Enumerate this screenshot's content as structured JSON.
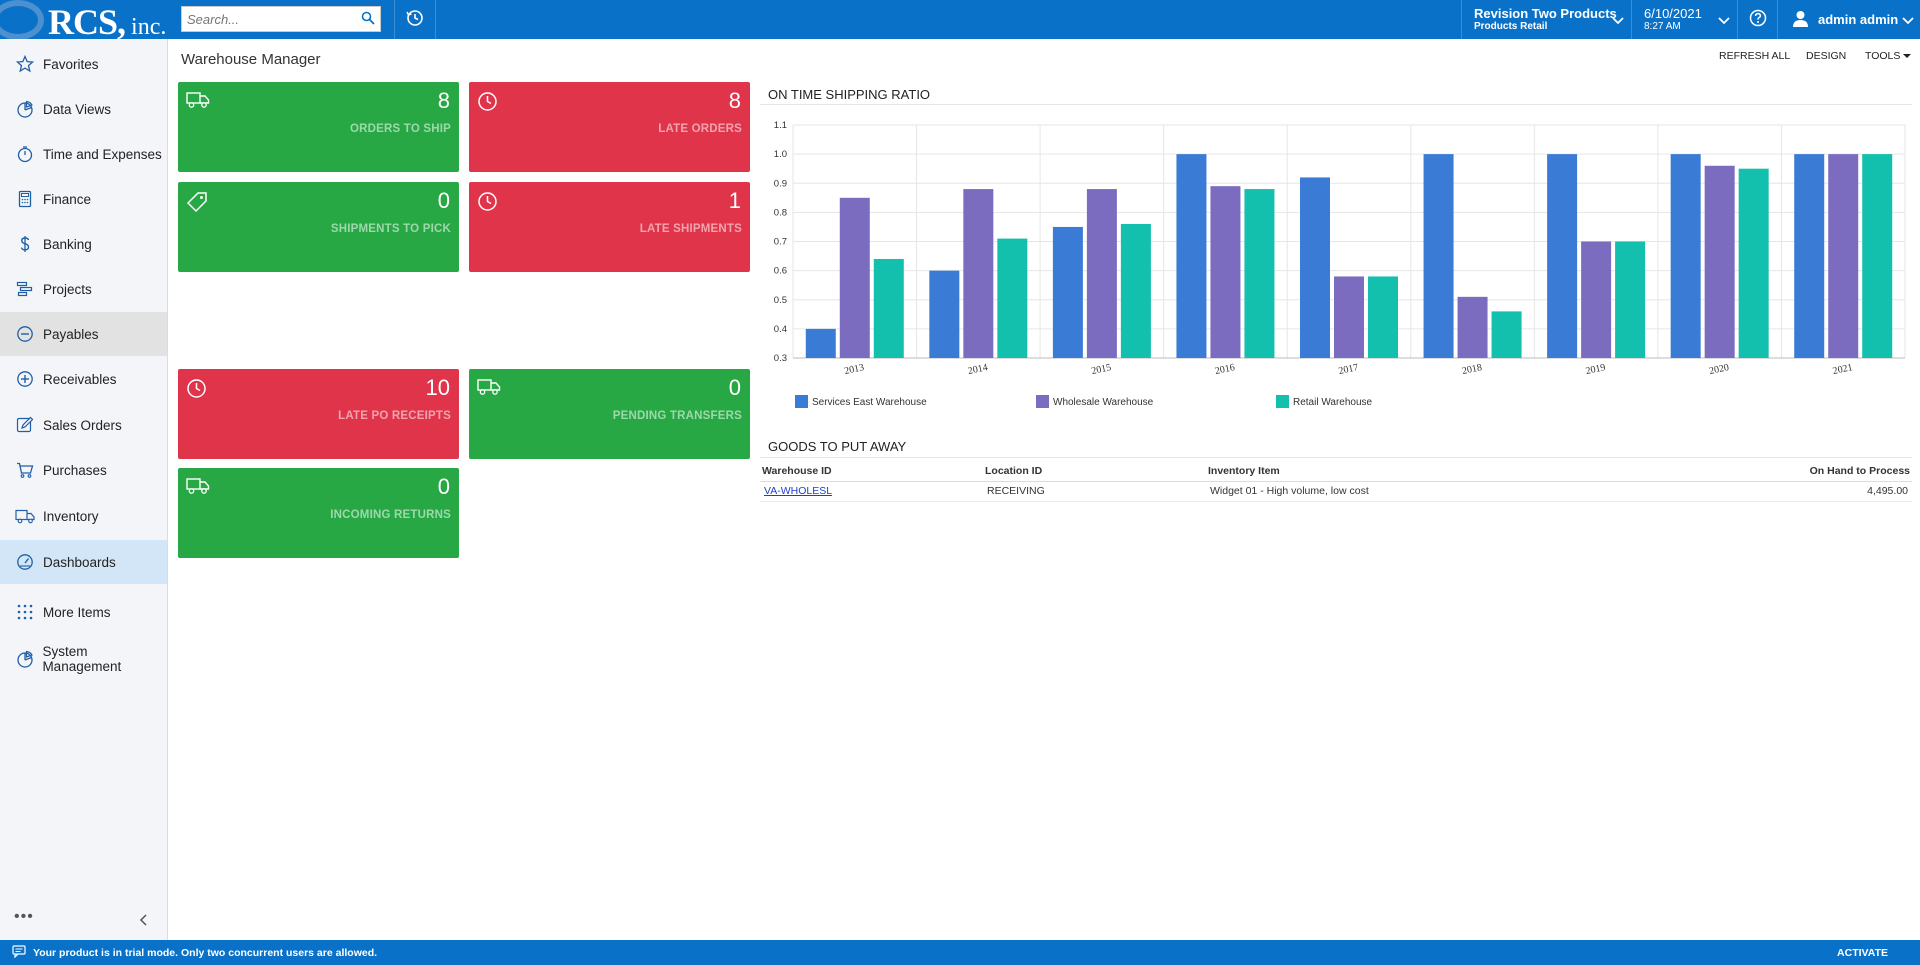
{
  "header": {
    "logo_main": "RCS,",
    "logo_suffix": " inc.",
    "search_placeholder": "Search...",
    "tenant_name": "Revision Two Products",
    "tenant_branch": "Products Retail",
    "date": "6/10/2021",
    "time": "8:27 AM",
    "user_name": "admin admin"
  },
  "sidebar": {
    "items": [
      {
        "label": "Favorites",
        "icon": "star-icon"
      },
      {
        "label": "Data Views",
        "icon": "pie-chart-icon"
      },
      {
        "label": "Time and Expenses",
        "icon": "stopwatch-icon"
      },
      {
        "label": "Finance",
        "icon": "calculator-icon"
      },
      {
        "label": "Banking",
        "icon": "dollar-icon"
      },
      {
        "label": "Projects",
        "icon": "gantt-icon"
      },
      {
        "label": "Payables",
        "icon": "minus-circle-icon"
      },
      {
        "label": "Receivables",
        "icon": "plus-circle-icon"
      },
      {
        "label": "Sales Orders",
        "icon": "edit-icon"
      },
      {
        "label": "Purchases",
        "icon": "cart-icon"
      },
      {
        "label": "Inventory",
        "icon": "truck-icon"
      },
      {
        "label": "Dashboards",
        "icon": "gauge-icon"
      },
      {
        "label": "More Items",
        "icon": "grid-dots-icon"
      },
      {
        "label": "System Management",
        "icon": "pie-chart-icon"
      }
    ],
    "more": "•••"
  },
  "page": {
    "title": "Warehouse Manager",
    "toolbar": {
      "refresh": "REFRESH ALL",
      "design": "DESIGN",
      "tools": "TOOLS"
    }
  },
  "tiles": [
    {
      "value": "8",
      "label": "ORDERS TO SHIP",
      "icon": "truck-icon",
      "color": "#27a844"
    },
    {
      "value": "8",
      "label": "LATE ORDERS",
      "icon": "clock-icon",
      "color": "#e0344a"
    },
    {
      "value": "0",
      "label": "SHIPMENTS TO PICK",
      "icon": "tag-icon",
      "color": "#27a844"
    },
    {
      "value": "1",
      "label": "LATE SHIPMENTS",
      "icon": "clock-icon",
      "color": "#e0344a"
    },
    {
      "value": "10",
      "label": "LATE PO RECEIPTS",
      "icon": "clock-icon",
      "color": "#e0344a"
    },
    {
      "value": "0",
      "label": "PENDING TRANSFERS",
      "icon": "truck-icon",
      "color": "#27a844"
    },
    {
      "value": "0",
      "label": "INCOMING RETURNS",
      "icon": "truck-icon",
      "color": "#27a844"
    }
  ],
  "chart_widget": {
    "title": "ON TIME SHIPPING RATIO"
  },
  "chart_data": {
    "type": "bar",
    "categories": [
      "2013",
      "2014",
      "2015",
      "2016",
      "2017",
      "2018",
      "2019",
      "2020",
      "2021"
    ],
    "series": [
      {
        "name": "Services East Warehouse",
        "color": "#3a7bd5",
        "values": [
          0.4,
          0.6,
          0.75,
          1.0,
          0.92,
          1.0,
          1.0,
          1.0,
          1.0
        ]
      },
      {
        "name": "Wholesale Warehouse",
        "color": "#7b6cbf",
        "values": [
          0.85,
          0.88,
          0.88,
          0.89,
          0.58,
          0.51,
          0.7,
          0.96,
          1.0
        ]
      },
      {
        "name": "Retail Warehouse",
        "color": "#13bfad",
        "values": [
          0.64,
          0.71,
          0.76,
          0.88,
          0.58,
          0.46,
          0.7,
          0.95,
          1.0
        ]
      }
    ],
    "ylim": [
      0.3,
      1.1
    ],
    "yticks": [
      "0.3",
      "0.4",
      "0.5",
      "0.6",
      "0.7",
      "0.8",
      "0.9",
      "1.0",
      "1.1"
    ],
    "grid": true,
    "legend": "bottom"
  },
  "goods": {
    "title": "GOODS TO PUT AWAY",
    "columns": [
      "Warehouse ID",
      "Location ID",
      "Inventory Item",
      "On Hand to Process"
    ],
    "rows": [
      {
        "warehouse": "VA-WHOLESL",
        "location": "RECEIVING",
        "item": "Widget 01 - High volume, low cost",
        "qty": "4,495.00"
      }
    ]
  },
  "footer": {
    "message": "Your product is in trial mode. Only two concurrent users are allowed.",
    "activate": "ACTIVATE"
  }
}
